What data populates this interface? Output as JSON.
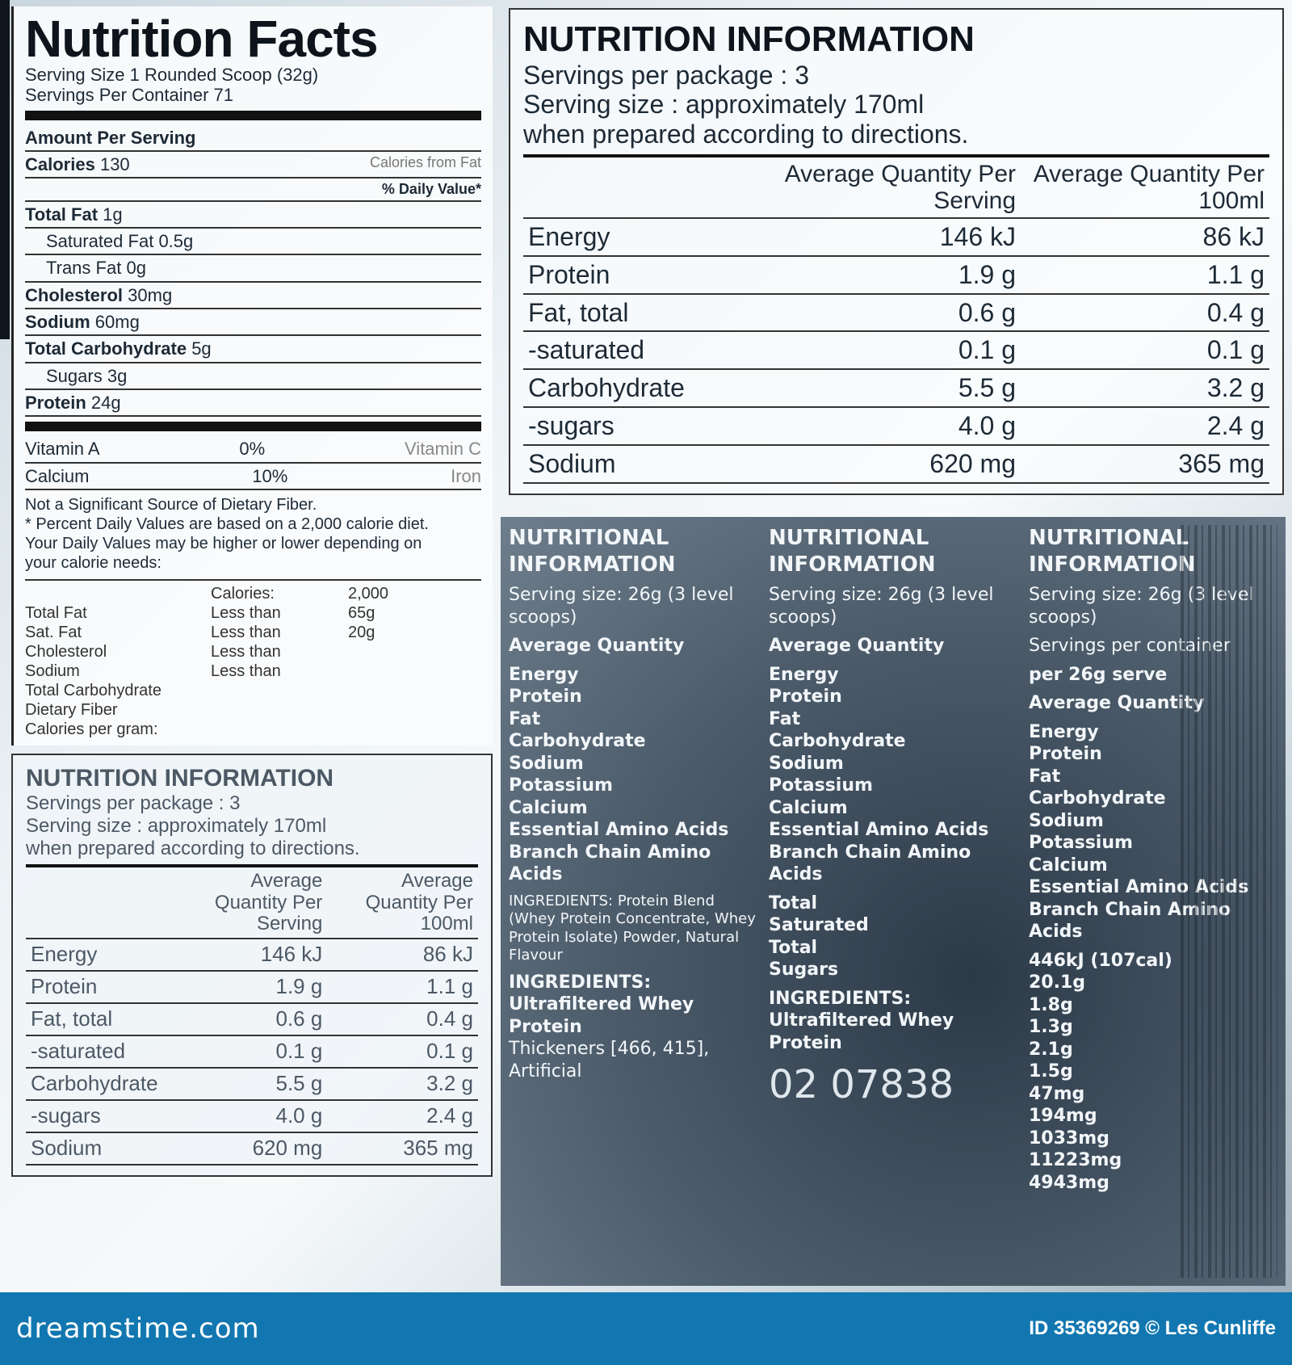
{
  "nutrition_facts": {
    "title": "Nutrition Facts",
    "serving_size": "Serving Size 1 Rounded Scoop (32g)",
    "servings": "Servings Per Container 71",
    "amount_per_serving": "Amount Per Serving",
    "calories_label": "Calories",
    "calories_value": "130",
    "calories_from_fat": "Calories from Fat",
    "daily_value_header": "% Daily Value*",
    "rows": [
      {
        "label": "Total Fat",
        "value": "1g",
        "bold": true
      },
      {
        "label": "Saturated Fat",
        "value": "0.5g",
        "bold": false
      },
      {
        "label": "Trans Fat",
        "value": "0g",
        "bold": false
      },
      {
        "label": "Cholesterol",
        "value": "30mg",
        "bold": true
      },
      {
        "label": "Sodium",
        "value": "60mg",
        "bold": true
      },
      {
        "label": "Total Carbohydrate",
        "value": "5g",
        "bold": true
      },
      {
        "label": "Sugars",
        "value": "3g",
        "bold": false
      },
      {
        "label": "Protein",
        "value": "24g",
        "bold": true
      }
    ],
    "vitamins": [
      {
        "label": "Vitamin A",
        "value": "0%",
        "other": "Vitamin C"
      },
      {
        "label": "Calcium",
        "value": "10%",
        "other": "Iron"
      }
    ],
    "footnotes": [
      "Not a Significant Source of Dietary Fiber.",
      "* Percent Daily Values are based on a 2,000 calorie diet.",
      "Your Daily Values may be higher or lower depending on",
      "your calorie needs:"
    ],
    "dv_table": [
      [
        "",
        "Calories:",
        "2,000"
      ],
      [
        "Total Fat",
        "Less than",
        "65g"
      ],
      [
        "Sat. Fat",
        "Less than",
        "20g"
      ],
      [
        "Cholesterol",
        "Less than",
        ""
      ],
      [
        "Sodium",
        "Less than",
        ""
      ],
      [
        "Total Carbohydrate",
        "",
        ""
      ],
      [
        "Dietary Fiber",
        "",
        ""
      ],
      [
        "Calories per gram:",
        "",
        ""
      ]
    ]
  },
  "nutrition_information": {
    "title": "NUTRITION INFORMATION",
    "servings_per_package": "Servings per package : 3",
    "serving_size": "Serving size : approximately 170ml",
    "serving_note": "when prepared according to directions.",
    "col1": "Average Quantity Per Serving",
    "col2": "Average Quantity Per 100ml",
    "rows": [
      {
        "label": "Energy",
        "per_serving": "146 kJ",
        "per_100ml": "86 kJ"
      },
      {
        "label": "Protein",
        "per_serving": "1.9 g",
        "per_100ml": "1.1 g"
      },
      {
        "label": "Fat, total",
        "per_serving": "0.6 g",
        "per_100ml": "0.4 g"
      },
      {
        "label": "-saturated",
        "per_serving": "0.1 g",
        "per_100ml": "0.1 g"
      },
      {
        "label": "Carbohydrate",
        "per_serving": "5.5 g",
        "per_100ml": "3.2 g"
      },
      {
        "label": "-sugars",
        "per_serving": "4.0 g",
        "per_100ml": "2.4 g"
      },
      {
        "label": "Sodium",
        "per_serving": "620 mg",
        "per_100ml": "365 mg"
      }
    ]
  },
  "overlays": {
    "nutritional_information": "NUTRITIONAL INFORMATION",
    "serving_size": "Serving size: 26g (3 level scoops)",
    "servings_per_container": "Servings per container",
    "average_quantity": "Average Quantity",
    "per_26g": "per 26g serve",
    "items": [
      "Energy",
      "Protein",
      "Fat",
      "Carbohydrate",
      "Sodium",
      "Potassium",
      "Calcium",
      "Essential Amino Acids",
      "Branch Chain Amino Acids"
    ],
    "fat_items": [
      "Total",
      "Saturated",
      "Total",
      "Sugars"
    ],
    "values": [
      "446kJ (107cal)",
      "20.1g",
      "1.8g",
      "1.3g",
      "2.1g",
      "1.5g",
      "47mg",
      "194mg",
      "1033mg",
      "11223mg",
      "4943mg"
    ],
    "ingredients": "INGREDIENTS: Ultrafiltered Whey Protein",
    "ingredients2": "Thickeners [466, 415], Artificial",
    "ingredients_left": "INGREDIENTS: Protein Blend (Whey Protein Concentrate, Whey Protein Isolate) Powder, Natural Flavour",
    "barcode_digits": "02 07838"
  },
  "footer": {
    "logo": "dreamstime.com",
    "credit": "ID 35369269 © Les Cunliffe",
    "color": "#1277b0"
  }
}
